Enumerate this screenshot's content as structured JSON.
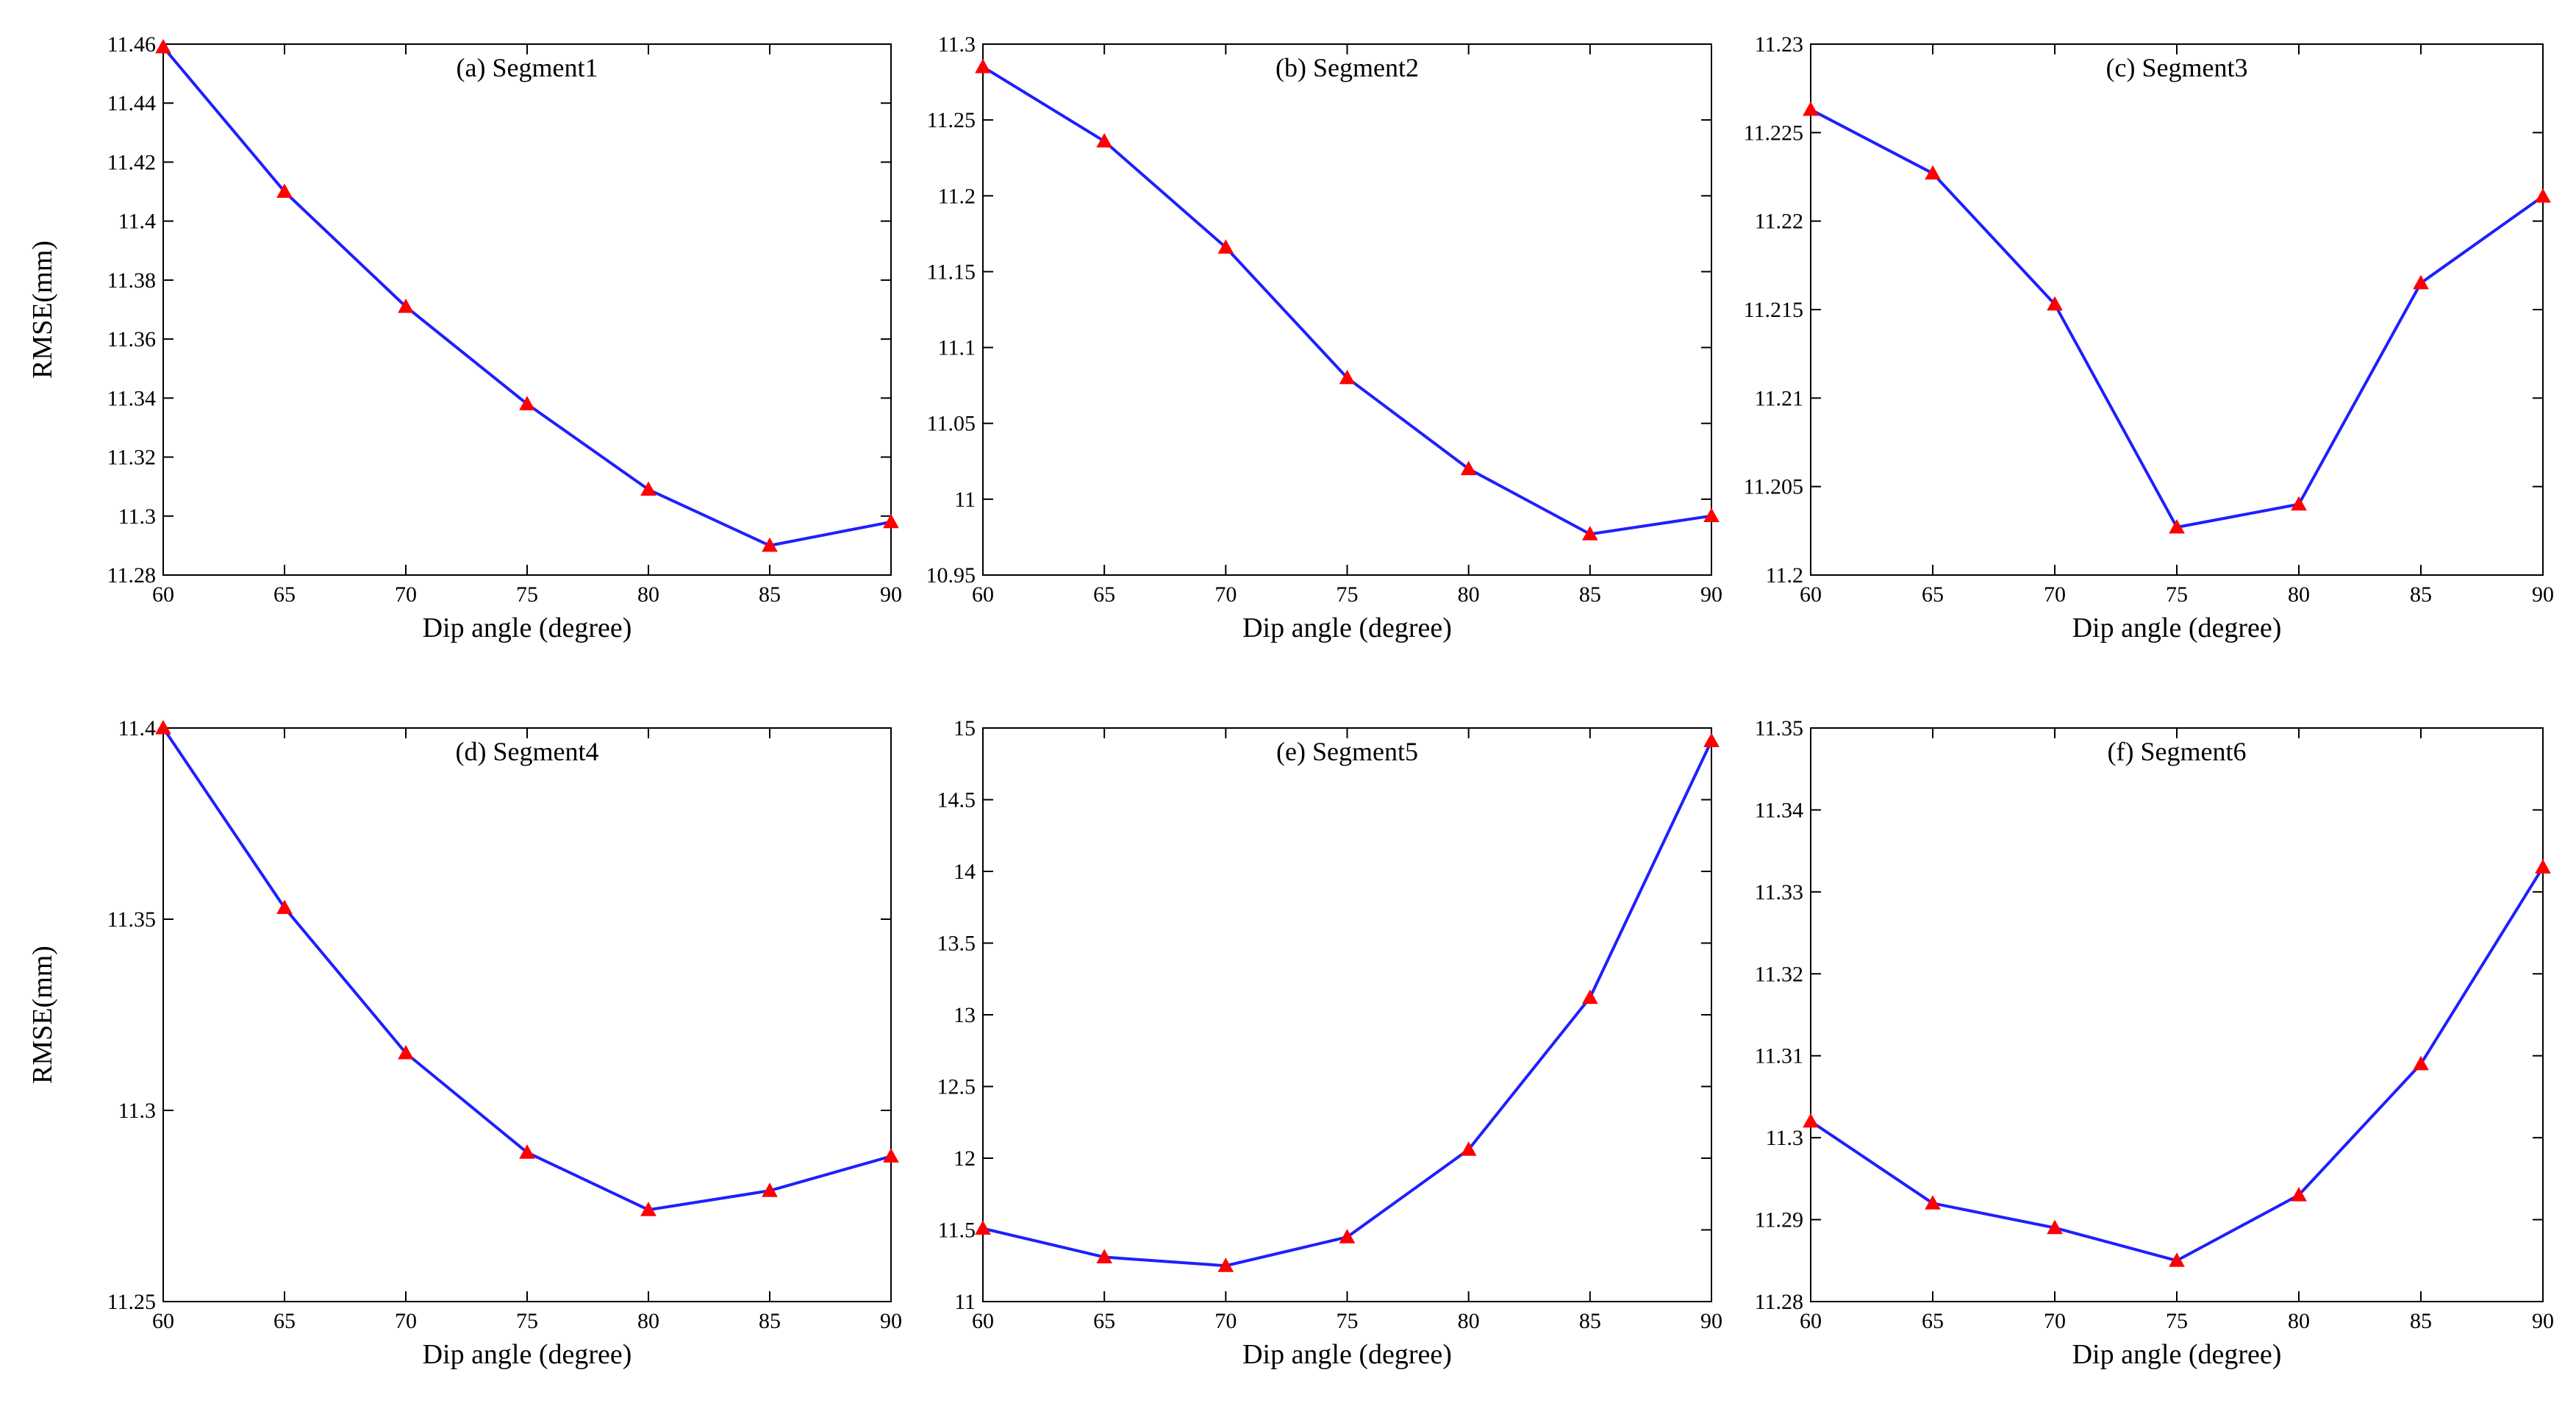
{
  "figure": {
    "ylabel": "RMSE(mm)",
    "xlabel": "Dip angle (degree)",
    "line_color": "#1f1fff",
    "marker_color": "#ff0000"
  },
  "chart_data": [
    {
      "type": "line",
      "title": "(a) Segment1",
      "xlabel": "Dip angle (degree)",
      "ylabel": "RMSE(mm)",
      "x": [
        60,
        65,
        70,
        75,
        80,
        85,
        90
      ],
      "values": [
        11.459,
        11.41,
        11.371,
        11.338,
        11.309,
        11.29,
        11.298
      ],
      "xlim": [
        60,
        90
      ],
      "ylim": [
        11.28,
        11.46
      ],
      "xticks": [
        "60",
        "65",
        "70",
        "75",
        "80",
        "85",
        "90"
      ],
      "yticks": [
        "11.28",
        "11.3",
        "11.32",
        "11.34",
        "11.36",
        "11.38",
        "11.4",
        "11.42",
        "11.44",
        "11.46"
      ]
    },
    {
      "type": "line",
      "title": "(b) Segment2",
      "xlabel": "Dip angle (degree)",
      "ylabel": "",
      "x": [
        60,
        65,
        70,
        75,
        80,
        85,
        90
      ],
      "values": [
        11.285,
        11.236,
        11.166,
        11.08,
        11.02,
        10.977,
        10.989
      ],
      "xlim": [
        60,
        90
      ],
      "ylim": [
        10.95,
        11.3
      ],
      "xticks": [
        "60",
        "65",
        "70",
        "75",
        "80",
        "85",
        "90"
      ],
      "yticks": [
        "10.95",
        "11",
        "11.05",
        "11.1",
        "11.15",
        "11.2",
        "11.25",
        "11.3"
      ]
    },
    {
      "type": "line",
      "title": "(c) Segment3",
      "xlabel": "Dip angle (degree)",
      "ylabel": "",
      "x": [
        60,
        65,
        70,
        75,
        80,
        85,
        90
      ],
      "values": [
        11.2263,
        11.2227,
        11.2153,
        11.2027,
        11.204,
        11.2165,
        11.2214
      ],
      "xlim": [
        60,
        90
      ],
      "ylim": [
        11.2,
        11.23
      ],
      "xticks": [
        "60",
        "65",
        "70",
        "75",
        "80",
        "85",
        "90"
      ],
      "yticks": [
        "11.2",
        "11.205",
        "11.21",
        "11.215",
        "11.22",
        "11.225",
        "11.23"
      ]
    },
    {
      "type": "line",
      "title": "(d) Segment4",
      "xlabel": "Dip angle (degree)",
      "ylabel": "RMSE(mm)",
      "x": [
        60,
        65,
        70,
        75,
        80,
        85,
        90
      ],
      "values": [
        11.4,
        11.353,
        11.315,
        11.289,
        11.274,
        11.279,
        11.288
      ],
      "xlim": [
        60,
        90
      ],
      "ylim": [
        11.25,
        11.4
      ],
      "xticks": [
        "60",
        "65",
        "70",
        "75",
        "80",
        "85",
        "90"
      ],
      "yticks": [
        "11.25",
        "11.3",
        "11.35",
        "11.4"
      ]
    },
    {
      "type": "line",
      "title": "(e) Segment5",
      "xlabel": "Dip angle (degree)",
      "ylabel": "",
      "x": [
        60,
        65,
        70,
        75,
        80,
        85,
        90
      ],
      "values": [
        11.51,
        11.31,
        11.25,
        11.45,
        12.06,
        13.12,
        14.91
      ],
      "xlim": [
        60,
        90
      ],
      "ylim": [
        11,
        15
      ],
      "xticks": [
        "60",
        "65",
        "70",
        "75",
        "80",
        "85",
        "90"
      ],
      "yticks": [
        "11",
        "11.5",
        "12",
        "12.5",
        "13",
        "13.5",
        "14",
        "14.5",
        "15"
      ]
    },
    {
      "type": "line",
      "title": "(f) Segment6",
      "xlabel": "Dip angle (degree)",
      "ylabel": "",
      "x": [
        60,
        65,
        70,
        75,
        80,
        85,
        90
      ],
      "values": [
        11.302,
        11.292,
        11.289,
        11.285,
        11.293,
        11.309,
        11.333
      ],
      "xlim": [
        60,
        90
      ],
      "ylim": [
        11.28,
        11.35
      ],
      "xticks": [
        "60",
        "65",
        "70",
        "75",
        "80",
        "85",
        "90"
      ],
      "yticks": [
        "11.28",
        "11.29",
        "11.3",
        "11.31",
        "11.32",
        "11.33",
        "11.34",
        "11.35"
      ]
    }
  ]
}
